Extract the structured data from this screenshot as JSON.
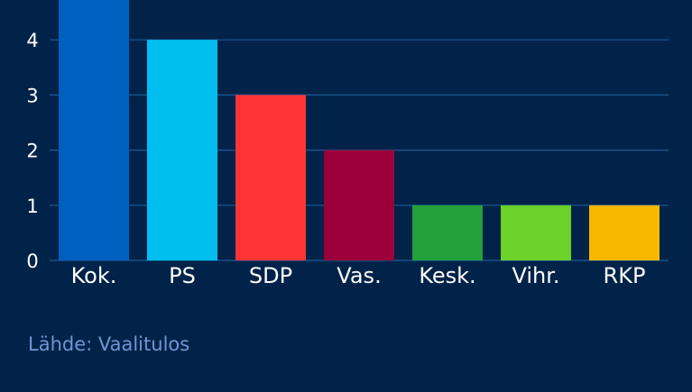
{
  "colors": {
    "background": "#022349",
    "gridline": "#1a5a96",
    "axis_text": "#ffffff",
    "source_text": "#6f96d2"
  },
  "chart_data": {
    "type": "bar",
    "categories": [
      "Kok.",
      "PS",
      "SDP",
      "Vas.",
      "Kesk.",
      "Vihr.",
      "RKP"
    ],
    "values": [
      5,
      4,
      3,
      2,
      1,
      1,
      1
    ],
    "bar_colors": [
      "#0060c0",
      "#00bfef",
      "#ff3434",
      "#9b003a",
      "#21a03c",
      "#6cd22a",
      "#f8b800"
    ],
    "title": "",
    "xlabel": "",
    "ylabel": "",
    "ylim": [
      0,
      4.75
    ],
    "y_ticks": [
      0,
      1,
      2,
      3,
      4
    ],
    "grid": true,
    "legend": "none"
  },
  "source": "Lähde: Vaalitulos"
}
